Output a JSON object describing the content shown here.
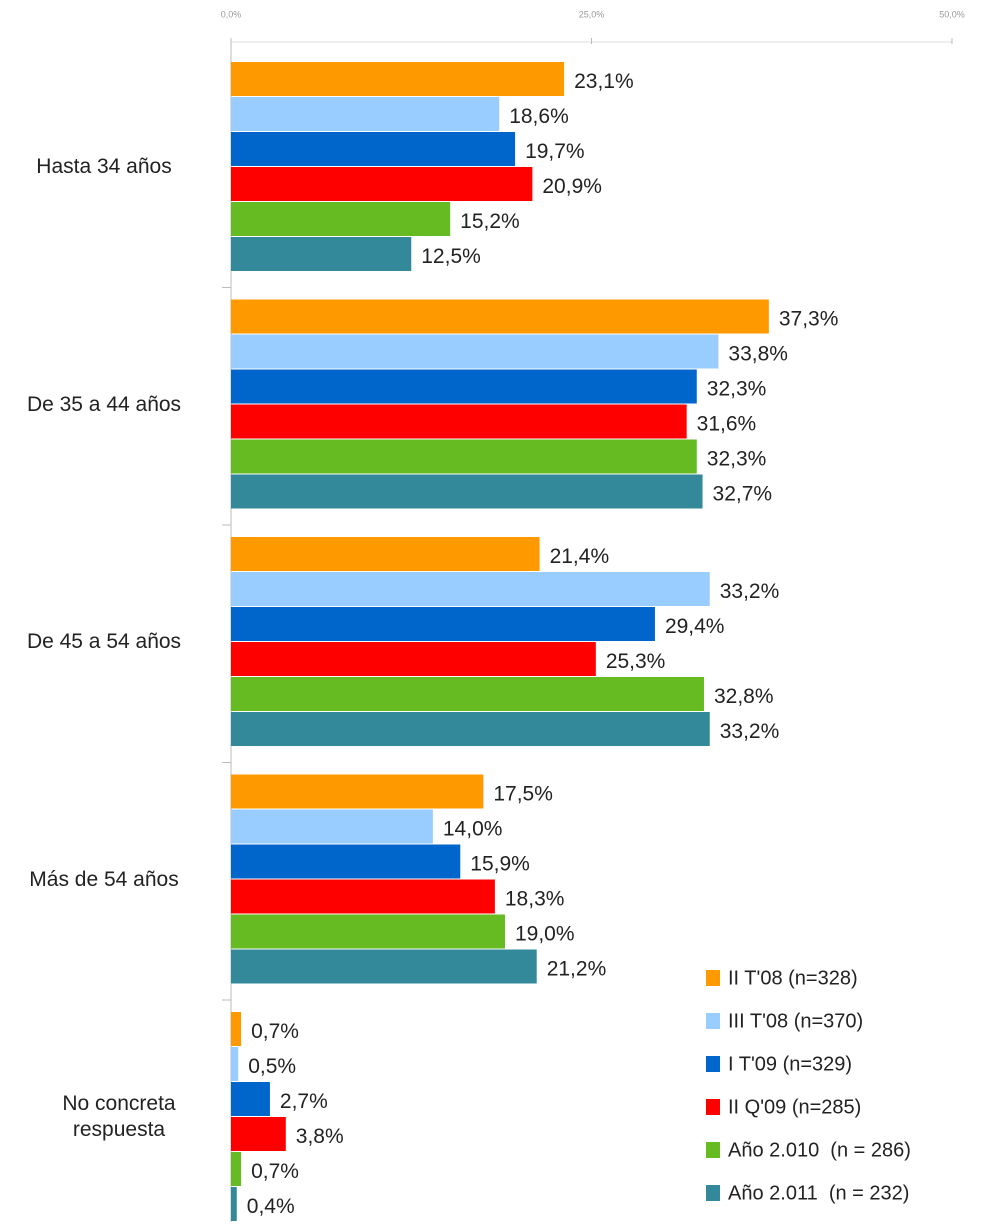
{
  "chart_data": {
    "type": "barh",
    "categories": [
      "Hasta 34 años",
      "De 35 a 44 años",
      "De 45 a 54 años",
      "Más de 54 años",
      "No concreta respuesta"
    ],
    "series": [
      {
        "name": "II T'08 (n=328)",
        "color": "#ff9900",
        "values": [
          23.1,
          37.3,
          21.4,
          17.5,
          0.7
        ],
        "value_labels": [
          "23,1%",
          "37,3%",
          "21,4%",
          "17,5%",
          "0,7%"
        ]
      },
      {
        "name": "III T'08 (n=370)",
        "color": "#99ccff",
        "values": [
          18.6,
          33.8,
          33.2,
          14.0,
          0.5
        ],
        "value_labels": [
          "18,6%",
          "33,8%",
          "33,2%",
          "14,0%",
          "0,5%"
        ]
      },
      {
        "name": "I T'09 (n=329)",
        "color": "#0066cc",
        "values": [
          19.7,
          32.3,
          29.4,
          15.9,
          2.7
        ],
        "value_labels": [
          "19,7%",
          "32,3%",
          "29,4%",
          "15,9%",
          "2,7%"
        ]
      },
      {
        "name": "II Q'09 (n=285)",
        "color": "#ff0000",
        "values": [
          20.9,
          31.6,
          25.3,
          18.3,
          3.8
        ],
        "value_labels": [
          "20,9%",
          "31,6%",
          "25,3%",
          "18,3%",
          "3,8%"
        ]
      },
      {
        "name": "Año 2.010  (n = 286)",
        "color": "#66bb22",
        "values": [
          15.2,
          32.3,
          32.8,
          19.0,
          0.7
        ],
        "value_labels": [
          "15,2%",
          "32,3%",
          "32,8%",
          "19,0%",
          "0,7%"
        ]
      },
      {
        "name": "Año 2.011  (n = 232)",
        "color": "#338899",
        "values": [
          12.5,
          32.7,
          33.2,
          21.2,
          0.4
        ],
        "value_labels": [
          "12,5%",
          "32,7%",
          "33,2%",
          "21,2%",
          "0,4%"
        ]
      }
    ],
    "xlim": [
      0,
      50
    ],
    "xticks": [
      {
        "value": 0,
        "label": "0,0%"
      },
      {
        "value": 25,
        "label": "25,0%"
      },
      {
        "value": 50,
        "label": "50,0%"
      }
    ],
    "legend": "lower right"
  }
}
